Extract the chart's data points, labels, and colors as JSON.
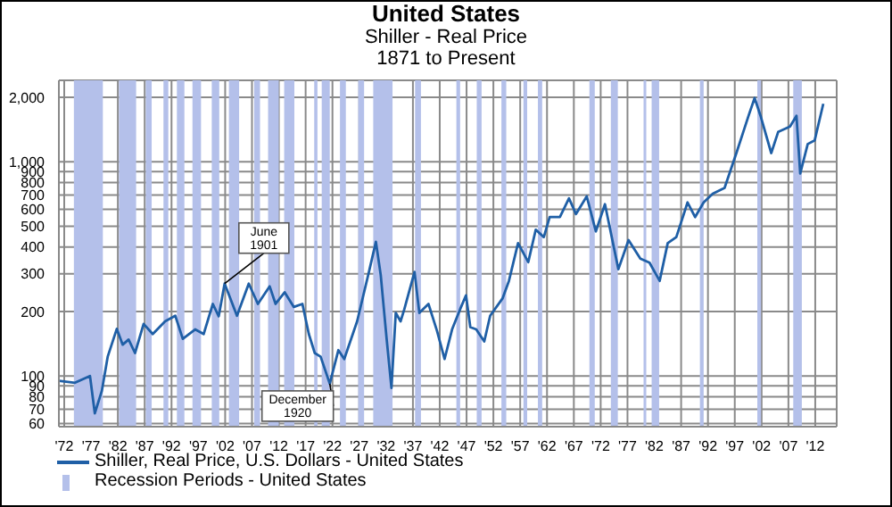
{
  "chart_data": {
    "type": "line",
    "title": "United States",
    "subtitle": "Shiller - Real Price\n1871 to Present",
    "x": [
      1871.0,
      1874.0,
      1876.8,
      1877.7,
      1879.0,
      1880.1,
      1881.8,
      1882.9,
      1884.0,
      1885.2,
      1886.8,
      1888.5,
      1890.8,
      1892.7,
      1894.1,
      1896.4,
      1898.0,
      1899.7,
      1900.8,
      1901.9,
      1904.2,
      1906.4,
      1908.1,
      1910.3,
      1911.4,
      1913.1,
      1914.8,
      1916.4,
      1917.6,
      1918.7,
      1919.8,
      1921.5,
      1923.1,
      1924.2,
      1926.6,
      1928.8,
      1930.1,
      1931.0,
      1932.1,
      1933.0,
      1933.8,
      1934.7,
      1935.4,
      1937.3,
      1938.2,
      1939.9,
      1941.5,
      1942.9,
      1944.3,
      1945.8,
      1946.9,
      1947.7,
      1948.8,
      1950.3,
      1951.4,
      1953.7,
      1954.9,
      1956.6,
      1958.5,
      1959.9,
      1961.4,
      1962.5,
      1964.4,
      1966.1,
      1967.4,
      1969.4,
      1971.1,
      1972.8,
      1975.3,
      1977.2,
      1979.4,
      1981.1,
      1983.0,
      1984.5,
      1986.1,
      1988.2,
      1989.6,
      1991.2,
      1992.9,
      1995.1,
      1997.3,
      1999.6,
      2000.7,
      2001.8,
      2003.8,
      2005.1,
      2007.3,
      2008.5,
      2009.2,
      2010.6,
      2011.9,
      2013.5
    ],
    "series": [
      {
        "name": "Shiller, Real Price, U.S. Dollars - United States",
        "color": "#1f5fa6",
        "values": [
          95,
          93,
          100,
          67,
          85,
          123,
          166,
          140,
          148,
          128,
          175,
          157,
          180,
          191,
          149,
          165,
          157,
          217,
          190,
          270,
          191,
          270,
          217,
          262,
          217,
          246,
          210,
          217,
          157,
          128,
          123,
          92,
          132,
          120,
          180,
          306,
          423,
          296,
          149,
          88,
          197,
          180,
          205,
          306,
          197,
          217,
          162,
          120,
          165,
          205,
          238,
          169,
          165,
          145,
          191,
          230,
          278,
          417,
          340,
          482,
          445,
          552,
          552,
          675,
          570,
          690,
          473,
          634,
          315,
          431,
          353,
          338,
          278,
          417,
          445,
          646,
          552,
          646,
          710,
          755,
          1098,
          1648,
          1985,
          1640,
          1098,
          1380,
          1460,
          1640,
          882,
          1210,
          1260,
          1865
        ]
      }
    ],
    "log": "y",
    "xlim": [
      1871,
      2016
    ],
    "ylim": [
      58,
      2400
    ],
    "xticks": [
      {
        "value": 1872,
        "label": "'72"
      },
      {
        "value": 1877,
        "label": "'77"
      },
      {
        "value": 1882,
        "label": "'82"
      },
      {
        "value": 1887,
        "label": "'87"
      },
      {
        "value": 1892,
        "label": "'92"
      },
      {
        "value": 1897,
        "label": "'97"
      },
      {
        "value": 1902,
        "label": "'02"
      },
      {
        "value": 1907,
        "label": "'07"
      },
      {
        "value": 1912,
        "label": "'12"
      },
      {
        "value": 1917,
        "label": "'17"
      },
      {
        "value": 1922,
        "label": "'22"
      },
      {
        "value": 1927,
        "label": "'27"
      },
      {
        "value": 1932,
        "label": "'32"
      },
      {
        "value": 1937,
        "label": "'37"
      },
      {
        "value": 1942,
        "label": "'42"
      },
      {
        "value": 1947,
        "label": "'47"
      },
      {
        "value": 1952,
        "label": "'52"
      },
      {
        "value": 1957,
        "label": "'57"
      },
      {
        "value": 1962,
        "label": "'62"
      },
      {
        "value": 1967,
        "label": "'67"
      },
      {
        "value": 1972,
        "label": "'72"
      },
      {
        "value": 1977,
        "label": "'77"
      },
      {
        "value": 1982,
        "label": "'82"
      },
      {
        "value": 1987,
        "label": "'87"
      },
      {
        "value": 1992,
        "label": "'92"
      },
      {
        "value": 1997,
        "label": "'97"
      },
      {
        "value": 2002,
        "label": "'02"
      },
      {
        "value": 2007,
        "label": "'07"
      },
      {
        "value": 2012,
        "label": "'12"
      }
    ],
    "yticks": [
      60,
      70,
      80,
      90,
      100,
      200,
      300,
      400,
      500,
      600,
      700,
      800,
      900,
      {
        "value": 1000,
        "label": "1,000"
      },
      {
        "value": 2000,
        "label": "2,000"
      }
    ],
    "grid": true,
    "legend": "bottom left",
    "marker": "none",
    "line_style": "solid",
    "bands": [
      {
        "axis": "x",
        "from": 1873.8,
        "to": 1879.2,
        "color": "#b4c0ea"
      },
      {
        "axis": "x",
        "from": 1882.2,
        "to": 1885.4,
        "color": "#b4c0ea"
      },
      {
        "axis": "x",
        "from": 1887.2,
        "to": 1888.3,
        "color": "#b4c0ea"
      },
      {
        "axis": "x",
        "from": 1890.5,
        "to": 1891.4,
        "color": "#b4c0ea"
      },
      {
        "axis": "x",
        "from": 1893.0,
        "to": 1894.4,
        "color": "#b4c0ea"
      },
      {
        "axis": "x",
        "from": 1895.9,
        "to": 1897.5,
        "color": "#b4c0ea"
      },
      {
        "axis": "x",
        "from": 1899.5,
        "to": 1900.9,
        "color": "#b4c0ea"
      },
      {
        "axis": "x",
        "from": 1902.7,
        "to": 1904.6,
        "color": "#b4c0ea"
      },
      {
        "axis": "x",
        "from": 1907.4,
        "to": 1908.5,
        "color": "#b4c0ea"
      },
      {
        "axis": "x",
        "from": 1910.0,
        "to": 1912.0,
        "color": "#b4c0ea"
      },
      {
        "axis": "x",
        "from": 1913.0,
        "to": 1914.9,
        "color": "#b4c0ea"
      },
      {
        "axis": "x",
        "from": 1918.6,
        "to": 1919.2,
        "color": "#b4c0ea"
      },
      {
        "axis": "x",
        "from": 1920.0,
        "to": 1921.5,
        "color": "#b4c0ea"
      },
      {
        "axis": "x",
        "from": 1923.4,
        "to": 1924.5,
        "color": "#b4c0ea"
      },
      {
        "axis": "x",
        "from": 1926.8,
        "to": 1927.9,
        "color": "#b4c0ea"
      },
      {
        "axis": "x",
        "from": 1929.6,
        "to": 1933.2,
        "color": "#b4c0ea"
      },
      {
        "axis": "x",
        "from": 1937.4,
        "to": 1938.5,
        "color": "#b4c0ea"
      },
      {
        "axis": "x",
        "from": 1945.1,
        "to": 1945.8,
        "color": "#b4c0ea"
      },
      {
        "axis": "x",
        "from": 1948.9,
        "to": 1949.8,
        "color": "#b4c0ea"
      },
      {
        "axis": "x",
        "from": 1953.5,
        "to": 1954.4,
        "color": "#b4c0ea"
      },
      {
        "axis": "x",
        "from": 1957.6,
        "to": 1958.3,
        "color": "#b4c0ea"
      },
      {
        "axis": "x",
        "from": 1960.3,
        "to": 1961.1,
        "color": "#b4c0ea"
      },
      {
        "axis": "x",
        "from": 1969.9,
        "to": 1970.9,
        "color": "#b4c0ea"
      },
      {
        "axis": "x",
        "from": 1973.9,
        "to": 1975.2,
        "color": "#b4c0ea"
      },
      {
        "axis": "x",
        "from": 1980.0,
        "to": 1980.5,
        "color": "#b4c0ea"
      },
      {
        "axis": "x",
        "from": 1981.5,
        "to": 1982.9,
        "color": "#b4c0ea"
      },
      {
        "axis": "x",
        "from": 1990.5,
        "to": 1991.2,
        "color": "#b4c0ea"
      },
      {
        "axis": "x",
        "from": 2001.2,
        "to": 2001.9,
        "color": "#b4c0ea"
      },
      {
        "axis": "x",
        "from": 2007.9,
        "to": 2009.5,
        "color": "#b4c0ea"
      }
    ],
    "annotations": [
      {
        "text": "June 1901",
        "x": 1901.9,
        "y": 270
      },
      {
        "text": "December 1920",
        "x": 1921.5,
        "y": 92
      },
      "Recession Periods - United States"
    ]
  }
}
